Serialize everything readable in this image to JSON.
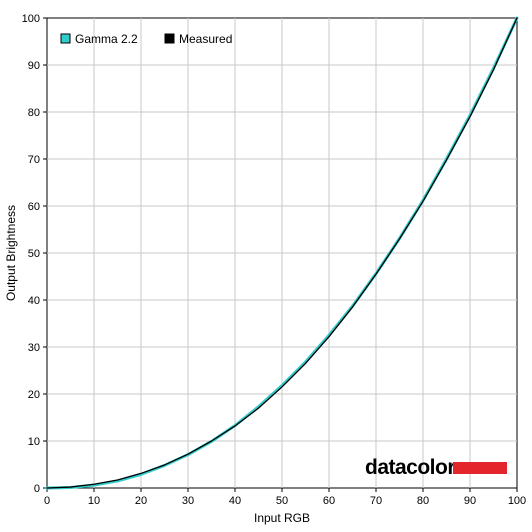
{
  "chart_data": {
    "type": "line",
    "title": "",
    "xlabel": "Input RGB",
    "ylabel": "Output Brightness",
    "xlim": [
      0,
      100
    ],
    "ylim": [
      0,
      100
    ],
    "x_ticks": [
      "0",
      "10",
      "20",
      "30",
      "40",
      "50",
      "60",
      "70",
      "80",
      "90",
      "100"
    ],
    "y_ticks": [
      "0",
      "10",
      "20",
      "30",
      "40",
      "50",
      "60",
      "70",
      "80",
      "90",
      "100"
    ],
    "grid": true,
    "legend_position": "top-left",
    "series": [
      {
        "name": "Gamma 2.2",
        "color": "#33cccc",
        "x": [
          0,
          5,
          10,
          15,
          20,
          25,
          30,
          35,
          40,
          45,
          50,
          55,
          60,
          65,
          70,
          75,
          80,
          85,
          90,
          95,
          100
        ],
        "y": [
          0,
          0.1,
          0.6,
          1.5,
          2.9,
          4.8,
          7.1,
          9.9,
          13.3,
          17.3,
          21.8,
          26.8,
          32.5,
          38.7,
          45.6,
          53.1,
          61.2,
          70.0,
          79.3,
          89.3,
          100
        ]
      },
      {
        "name": "Measured",
        "color": "#000000",
        "x": [
          0,
          5,
          10,
          15,
          20,
          25,
          30,
          35,
          40,
          45,
          50,
          55,
          60,
          65,
          70,
          75,
          80,
          85,
          90,
          95,
          100
        ],
        "y": [
          0,
          0.2,
          0.8,
          1.7,
          3.1,
          4.9,
          7.2,
          10.0,
          13.2,
          17.0,
          21.5,
          26.5,
          32.2,
          38.5,
          45.5,
          53.0,
          61.0,
          69.8,
          79.0,
          89.0,
          100
        ]
      }
    ]
  },
  "brand": {
    "name": "datacolor",
    "bar_color": "#e3262b"
  }
}
